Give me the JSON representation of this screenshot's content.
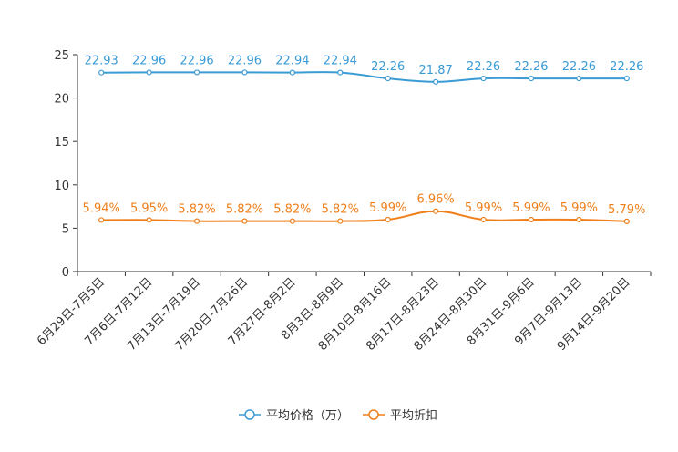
{
  "chart_data": {
    "type": "line",
    "title": "",
    "xlabel": "",
    "ylabel": "",
    "ylim": [
      0,
      25
    ],
    "yticks": [
      0,
      5,
      10,
      15,
      20,
      25
    ],
    "grid": false,
    "legend_position": "bottom-center",
    "categories": [
      "6月29日-7月5日",
      "7月6日-7月12日",
      "7月13日-7月19日",
      "7月20日-7月26日",
      "7月27日-8月2日",
      "8月3日-8月9日",
      "8月10日-8月16日",
      "8月17日-8月23日",
      "8月24日-8月30日",
      "8月31日-9月6日",
      "9月7日-9月13日",
      "9月14日-9月20日"
    ],
    "series": [
      {
        "name": "平均价格（万）",
        "color": "#3a9bd5",
        "values": [
          22.93,
          22.96,
          22.96,
          22.96,
          22.94,
          22.94,
          22.26,
          21.87,
          22.26,
          22.26,
          22.26,
          22.26
        ],
        "labels": [
          "22.93",
          "22.96",
          "22.96",
          "22.96",
          "22.94",
          "22.94",
          "22.26",
          "21.87",
          "22.26",
          "22.26",
          "22.26",
          "22.26"
        ]
      },
      {
        "name": "平均折扣",
        "color": "#f07f1a",
        "values": [
          5.94,
          5.95,
          5.82,
          5.82,
          5.82,
          5.82,
          5.99,
          6.96,
          5.99,
          5.99,
          5.99,
          5.79
        ],
        "labels": [
          "5.94%",
          "5.95%",
          "5.82%",
          "5.82%",
          "5.82%",
          "5.82%",
          "5.99%",
          "6.96%",
          "5.99%",
          "5.99%",
          "5.99%",
          "5.79%"
        ]
      }
    ]
  }
}
